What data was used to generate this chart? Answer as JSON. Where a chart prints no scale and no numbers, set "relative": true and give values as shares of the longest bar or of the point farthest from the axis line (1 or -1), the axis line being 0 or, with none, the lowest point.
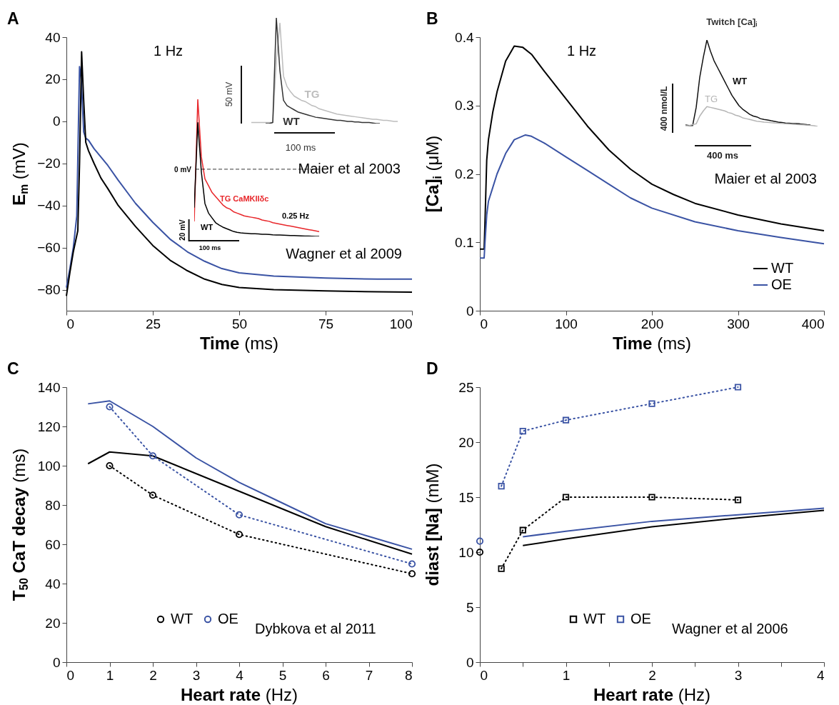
{
  "chart_data": [
    {
      "type": "line",
      "title": "A",
      "xlabel": "Time (ms)",
      "ylabel": "E$_{m}$ (mV)",
      "xlim": [
        0,
        100
      ],
      "ylim": [
        -90,
        40
      ],
      "xticks": [
        0,
        25,
        50,
        75,
        100
      ],
      "yticks": [
        {
          "value": -80,
          "label": "−80"
        },
        {
          "value": -60,
          "label": "−60"
        },
        {
          "value": -40,
          "label": "−40"
        },
        {
          "value": -20,
          "label": "−20"
        },
        0,
        20,
        40
      ],
      "annotations": [
        "1 Hz",
        "Maier et al 2003",
        "Wagner et al 2009"
      ],
      "series": [
        {
          "color": "#3a53a4",
          "x": [
            0,
            1,
            2,
            3,
            3.5,
            3.8,
            4.3,
            5,
            5.6,
            6.4,
            8,
            10,
            12,
            15,
            20,
            25,
            30,
            35,
            40,
            45,
            50,
            60,
            75,
            90,
            100
          ],
          "values": [
            -79,
            -70,
            -60,
            -45,
            0,
            26,
            20,
            -5,
            -8,
            -9,
            -13,
            -17,
            -21,
            -28,
            -39,
            -48,
            -56,
            -62,
            -66.5,
            -70,
            -72,
            -73.5,
            -74.5,
            -75,
            -75
          ]
        },
        {
          "color": "#000000",
          "x": [
            0,
            1,
            2,
            3.3,
            3.8,
            4.4,
            5,
            5.6,
            6.4,
            8,
            10,
            12,
            15,
            20,
            25,
            30,
            35,
            40,
            45,
            50,
            60,
            75,
            90,
            100
          ],
          "values": [
            -83,
            -72,
            -62,
            -52,
            -20,
            33,
            10,
            -10,
            -14,
            -20,
            -27,
            -32,
            -40,
            -50,
            -59,
            -66,
            -71,
            -75,
            -77.5,
            -79,
            -80,
            -80.6,
            -81,
            -81.2
          ]
        }
      ]
    },
    {
      "type": "line",
      "relative": true,
      "categories": [
        null,
        null,
        null,
        null,
        null,
        null,
        null,
        null,
        null,
        null,
        null,
        null,
        null,
        null,
        null,
        null,
        null,
        null,
        null,
        null,
        null,
        null,
        null,
        null,
        null,
        null,
        null,
        null,
        null,
        null,
        null,
        null,
        null,
        null,
        null,
        null,
        null,
        null,
        null,
        null,
        null,
        null
      ],
      "annotations": [
        "50 mV",
        "100 ms"
      ],
      "series": [
        {
          "name": "TG",
          "color": "#bdbdbd",
          "values": [
            0.01,
            0.01,
            0.01,
            0.01,
            0.01,
            0.01,
            0.01,
            0.6,
            0.95,
            0.45,
            0.35,
            0.3,
            0.26,
            0.24,
            0.22,
            0.21,
            0.19,
            0.17,
            0.16,
            0.14,
            0.13,
            0.12,
            0.11,
            0.1,
            0.09,
            0.085,
            0.08,
            0.075,
            0.07,
            0.065,
            0.06,
            0.055,
            0.05,
            0.045,
            0.04,
            0.04,
            0.035,
            0.03,
            0.03,
            0.025,
            0.02,
            0.02
          ]
        },
        {
          "name": "WT",
          "color": "#333333",
          "values": [
            null,
            null,
            null,
            null,
            0,
            0,
            0.01,
            1,
            0.5,
            0.22,
            0.17,
            0.15,
            0.13,
            0.11,
            0.1,
            0.09,
            0.08,
            0.07,
            0.06,
            0.055,
            0.05,
            0.045,
            0.04,
            0.035,
            0.03,
            0.03,
            0.025,
            0.02,
            0.02,
            0.015,
            0.015,
            0.01,
            0.01,
            0.01,
            0.005,
            0,
            0,
            null,
            null,
            null,
            null,
            null
          ]
        }
      ]
    },
    {
      "type": "line",
      "relative": true,
      "categories": [
        null,
        null,
        null,
        null,
        null,
        null,
        null,
        null,
        null,
        null,
        null,
        null,
        null,
        null,
        null,
        null,
        null,
        null,
        null,
        null,
        null,
        null,
        null,
        null,
        null,
        null,
        null,
        null,
        null,
        null,
        null,
        null,
        null,
        null,
        null,
        null
      ],
      "annotations": [
        "0.25 Hz",
        "20 mV",
        "100 ms"
      ],
      "ref_lines": [
        {
          "axis": "y",
          "value": 0.49,
          "label": "0 mV",
          "line_style": "dashed",
          "color": "#000000"
        }
      ],
      "series": [
        {
          "name": "TG CaMKIIδc",
          "color": "#e8262a",
          "values": [
            0.11,
            1,
            0.58,
            0.42,
            0.37,
            0.32,
            0.29,
            0.26,
            0.23,
            0.21,
            0.2,
            0.18,
            0.17,
            0.16,
            0.15,
            0.145,
            0.14,
            0.135,
            0.13,
            0.12,
            0.115,
            0.11,
            0.1,
            0.095,
            0.09,
            0.085,
            0.08,
            0.075,
            0.07,
            0.065,
            0.06,
            0.055,
            0.05,
            0.045,
            0.04,
            0.035
          ]
        },
        {
          "name": "WT",
          "color": "#000000",
          "values": [
            0.21,
            0.83,
            0.47,
            0.24,
            0.17,
            0.135,
            0.1,
            0.083,
            0.068,
            0.057,
            0.047,
            0.036,
            0.03,
            0.026,
            0.024,
            0.022,
            0.02,
            0.019,
            0.018,
            0.016,
            0.015,
            0.014,
            0.012,
            0.011,
            0.01,
            0.009,
            0.008,
            0.007,
            0.006,
            0.005,
            0.004,
            0.003,
            0.002,
            0.001,
            0,
            0
          ]
        }
      ]
    },
    {
      "type": "line",
      "title": "B",
      "xlabel": "Time (ms)",
      "ylabel": "[Ca]$_{i}$ (μM)",
      "xlim": [
        0,
        400
      ],
      "ylim": [
        0,
        0.4
      ],
      "xticks": [
        0,
        100,
        200,
        300,
        400
      ],
      "yticks": [
        0,
        0.1,
        0.2,
        0.3,
        0.4
      ],
      "legend": "bottom right",
      "annotations": [
        "1 Hz",
        "Maier et al 2003"
      ],
      "series": [
        {
          "name": "WT",
          "color": "#000000",
          "x": [
            0,
            5,
            6,
            8,
            10,
            15,
            20,
            30,
            40,
            50,
            60,
            75,
            100,
            125,
            150,
            175,
            200,
            225,
            250,
            300,
            350,
            400
          ],
          "values": [
            0.09,
            0.09,
            0.13,
            0.22,
            0.25,
            0.29,
            0.32,
            0.365,
            0.387,
            0.385,
            0.375,
            0.35,
            0.31,
            0.27,
            0.235,
            0.207,
            0.185,
            0.17,
            0.157,
            0.14,
            0.127,
            0.117
          ]
        },
        {
          "name": "OE",
          "color": "#3a53a4",
          "x": [
            0,
            5,
            6,
            8,
            10,
            15,
            20,
            30,
            40,
            53,
            60,
            75,
            100,
            125,
            150,
            175,
            200,
            250,
            300,
            350,
            400
          ],
          "values": [
            0.077,
            0.077,
            0.1,
            0.14,
            0.16,
            0.18,
            0.2,
            0.23,
            0.25,
            0.257,
            0.255,
            0.245,
            0.225,
            0.205,
            0.185,
            0.165,
            0.15,
            0.13,
            0.117,
            0.107,
            0.098
          ]
        }
      ]
    },
    {
      "type": "line",
      "relative": true,
      "title": "Twitch [Ca]$_{i}$",
      "categories": [
        null,
        null,
        null,
        null,
        null,
        null,
        null,
        null,
        null,
        null,
        null,
        null,
        null,
        null,
        null,
        null,
        null,
        null,
        null,
        null,
        null,
        null,
        null,
        null,
        null,
        null,
        null,
        null,
        null,
        null,
        null,
        null,
        null,
        null,
        null,
        null,
        null,
        null
      ],
      "annotations": [
        "400 nmol/L",
        "400 ms"
      ],
      "series": [
        {
          "name": "WT",
          "color": "#111111",
          "values": [
            0.017,
            0.01,
            0.01,
            0.22,
            0.57,
            0.8,
            1,
            0.87,
            0.76,
            0.68,
            0.6,
            0.52,
            0.44,
            0.36,
            0.3,
            0.24,
            0.2,
            0.17,
            0.14,
            0.12,
            0.11,
            0.09,
            0.08,
            0.075,
            0.066,
            0.058,
            0.05,
            0.045,
            0.04,
            0.037,
            0.033,
            0.033,
            0.03,
            0.025,
            0.02,
            0.017,
            null,
            null
          ]
        },
        {
          "name": "TG",
          "color": "#b5b5b5",
          "values": [
            0.008,
            0.01,
            0.02,
            0.03,
            0.12,
            0.18,
            0.23,
            0.22,
            0.21,
            0.2,
            0.19,
            0.18,
            0.16,
            0.15,
            0.13,
            0.12,
            0.1,
            0.09,
            0.08,
            0.07,
            0.06,
            0.055,
            0.05,
            0.047,
            0.044,
            0.04,
            0.037,
            0.035,
            0.03,
            0.028,
            0.025,
            0.022,
            0.02,
            0.018,
            0.015,
            0.012,
            0.008,
            0
          ]
        }
      ]
    },
    {
      "type": "line",
      "title": "C",
      "xlabel": "Heart rate (Hz)",
      "ylabel": "T$_{50}$ CaT decay (ms)",
      "xlim": [
        0,
        8
      ],
      "ylim": [
        0,
        140
      ],
      "xticks": [
        0,
        1,
        2,
        3,
        4,
        5,
        6,
        7,
        8
      ],
      "yticks": [
        0,
        20,
        40,
        60,
        80,
        100,
        120,
        140
      ],
      "legend": "bottom",
      "annotations": [
        "Dybkova et al 2011"
      ],
      "series": [
        {
          "color": "#3a53a4",
          "x": [
            0.5,
            1,
            2,
            3,
            4,
            5,
            6,
            7,
            8
          ],
          "values": [
            131.5,
            133,
            120,
            104,
            91.5,
            81,
            70.5,
            64,
            57.5
          ]
        },
        {
          "color": "#000000",
          "x": [
            0.5,
            1,
            2,
            3,
            4,
            5,
            6,
            7,
            8
          ],
          "values": [
            101,
            107,
            105,
            96,
            87,
            78,
            69,
            62,
            55
          ]
        },
        {
          "name": "WT",
          "color": "#000000",
          "line_style": "dotted",
          "marker": "circle",
          "x": [
            1,
            2,
            4,
            8
          ],
          "values": [
            100,
            85,
            65,
            45
          ]
        },
        {
          "name": "OE",
          "color": "#3a53a4",
          "line_style": "dotted",
          "marker": "circle",
          "x": [
            1,
            2,
            4,
            8
          ],
          "values": [
            130,
            105,
            75,
            50
          ]
        }
      ]
    },
    {
      "type": "line",
      "title": "D",
      "xlabel": "Heart rate (Hz)",
      "ylabel": "diast [Na] (mM)",
      "xlim": [
        0,
        4
      ],
      "ylim": [
        0,
        25
      ],
      "xticks": [
        0,
        {
          "value": 0.5,
          "label": null
        },
        1,
        {
          "value": 1.5,
          "label": null
        },
        2,
        {
          "value": 2.5,
          "label": null
        },
        3,
        {
          "value": 3.5,
          "label": null
        },
        4
      ],
      "yticks": [
        0,
        5,
        10,
        15,
        20,
        25
      ],
      "legend": "bottom",
      "annotations": [
        "Wagner et al 2006"
      ],
      "series": [
        {
          "color": "#3a53a4",
          "x": [
            0.5,
            1,
            2,
            3,
            4
          ],
          "values": [
            11.4,
            11.9,
            12.8,
            13.4,
            14
          ]
        },
        {
          "color": "#000000",
          "x": [
            0.5,
            1,
            2,
            3,
            4
          ],
          "values": [
            10.6,
            11.2,
            12.3,
            13.1,
            13.8
          ]
        },
        {
          "name": "WT",
          "color": "#000000",
          "line_style": "dotted",
          "marker": "square",
          "x": [
            0.25,
            0.5,
            1,
            2,
            3
          ],
          "values": [
            8.5,
            12,
            15,
            15,
            14.75
          ]
        },
        {
          "name": "OE",
          "color": "#3a53a4",
          "line_style": "dotted",
          "marker": "square",
          "x": [
            0.25,
            0.5,
            1,
            2,
            3
          ],
          "values": [
            16,
            21,
            22,
            23.5,
            25
          ]
        },
        {
          "type": "scatter",
          "color": "#000000",
          "marker": "circle",
          "x": [
            0
          ],
          "values": [
            10
          ]
        },
        {
          "type": "scatter",
          "color": "#3a53a4",
          "marker": "circle",
          "x": [
            0
          ],
          "values": [
            11
          ]
        }
      ]
    }
  ]
}
